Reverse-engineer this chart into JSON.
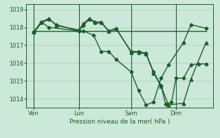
{
  "background_color": "#cce8d8",
  "grid_color": "#aaccbb",
  "line_color": "#1a5e28",
  "xlabel": "Pression niveau de la mer( hPa )",
  "ylim": [
    1013.5,
    1019.3
  ],
  "yticks": [
    1014,
    1015,
    1016,
    1017,
    1018,
    1019
  ],
  "xtick_labels": [
    "Ven",
    "Lun",
    "Sam",
    "Dim"
  ],
  "xtick_positions": [
    0.5,
    3.5,
    7.0,
    10.0
  ],
  "vline_positions": [
    0.5,
    3.5,
    7.0,
    10.0
  ],
  "xlim": [
    0,
    12.5
  ],
  "series1_x": [
    0.5,
    1.0,
    1.5,
    2.0,
    3.5,
    3.8,
    4.2,
    4.6,
    5.0,
    5.5,
    6.0,
    7.0,
    7.5,
    8.0,
    8.5,
    9.0,
    9.3,
    9.7,
    10.0,
    10.5,
    11.0,
    11.5,
    12.0
  ],
  "series1_y": [
    1017.7,
    1018.25,
    1018.45,
    1018.15,
    1017.8,
    1018.1,
    1018.45,
    1018.25,
    1018.25,
    1017.8,
    1017.9,
    1016.65,
    1016.65,
    1016.55,
    1015.5,
    1014.75,
    1013.7,
    1013.8,
    1015.15,
    1015.15,
    1015.9,
    1015.95,
    1015.95
  ],
  "series1_marker": "D",
  "series1_ms": 2.5,
  "series2_x": [
    0.5,
    1.0,
    1.5,
    2.0,
    3.5,
    3.8,
    4.2,
    4.6,
    5.0,
    5.5,
    6.0,
    7.0,
    7.5,
    8.0,
    8.5,
    9.0,
    9.5,
    10.5,
    11.0,
    12.0
  ],
  "series2_y": [
    1017.75,
    1018.3,
    1018.5,
    1018.1,
    1017.85,
    1018.2,
    1018.5,
    1018.3,
    1018.3,
    1017.8,
    1017.95,
    1016.6,
    1016.6,
    1016.5,
    1015.45,
    1014.7,
    1013.65,
    1013.75,
    1015.1,
    1017.15
  ],
  "series2_marker": "^",
  "series2_ms": 3.5,
  "series3_x": [
    0.5,
    7.0,
    7.0,
    12.0
  ],
  "series3_y": [
    1017.8,
    1017.8,
    1017.8,
    1017.8
  ],
  "series4_x": [
    0.5,
    1.0,
    1.5,
    3.5,
    3.8,
    4.5,
    5.0,
    5.5,
    6.0,
    7.0,
    7.5,
    8.0,
    8.5,
    9.0,
    9.5,
    10.5,
    11.0,
    12.0
  ],
  "series4_y": [
    1017.75,
    1018.3,
    1018.0,
    1017.8,
    1017.8,
    1017.55,
    1016.65,
    1016.65,
    1016.2,
    1015.5,
    1014.45,
    1013.65,
    1013.82,
    1015.15,
    1015.9,
    1017.15,
    1018.15,
    1017.95
  ],
  "series4_marker": "D",
  "series4_ms": 2.5
}
